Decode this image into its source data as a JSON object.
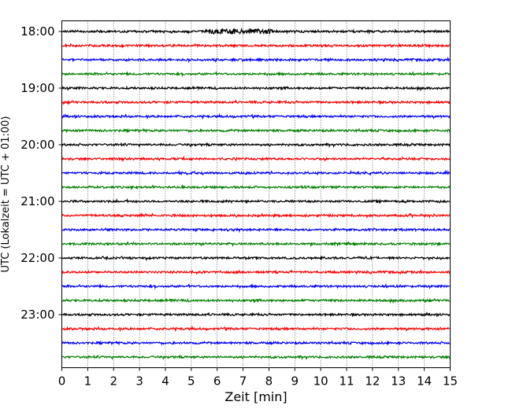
{
  "chart_data": {
    "type": "line",
    "title": "",
    "xlabel": "Zeit  [min]",
    "ylabel": "UTC (Lokalzeit = UTC + 01:00)",
    "xlim": [
      0,
      15
    ],
    "x_ticks": [
      "0",
      "1",
      "2",
      "3",
      "4",
      "5",
      "6",
      "7",
      "8",
      "9",
      "10",
      "11",
      "12",
      "13",
      "14",
      "15"
    ],
    "y_ticks": [
      {
        "label": "18:00",
        "row": 0
      },
      {
        "label": "19:00",
        "row": 4
      },
      {
        "label": "20:00",
        "row": 8
      },
      {
        "label": "21:00",
        "row": 12
      },
      {
        "label": "22:00",
        "row": 16
      },
      {
        "label": "23:00",
        "row": 20
      }
    ],
    "grid": "vertical dotted at each minute",
    "row_interval_minutes": 15,
    "row_colors": [
      "#000000",
      "#ff0000",
      "#0000ff",
      "#008000"
    ],
    "series": [
      {
        "start": "18:00"
      },
      {
        "start": "18:15"
      },
      {
        "start": "18:30"
      },
      {
        "start": "18:45"
      },
      {
        "start": "19:00"
      },
      {
        "start": "19:15"
      },
      {
        "start": "19:30"
      },
      {
        "start": "19:45"
      },
      {
        "start": "20:00"
      },
      {
        "start": "20:15"
      },
      {
        "start": "20:30"
      },
      {
        "start": "20:45"
      },
      {
        "start": "21:00"
      },
      {
        "start": "21:15"
      },
      {
        "start": "21:30"
      },
      {
        "start": "21:45"
      },
      {
        "start": "22:00"
      },
      {
        "start": "22:15"
      },
      {
        "start": "22:30"
      },
      {
        "start": "22:45"
      },
      {
        "start": "23:00"
      },
      {
        "start": "23:15"
      },
      {
        "start": "23:30"
      },
      {
        "start": "23:45"
      }
    ]
  }
}
